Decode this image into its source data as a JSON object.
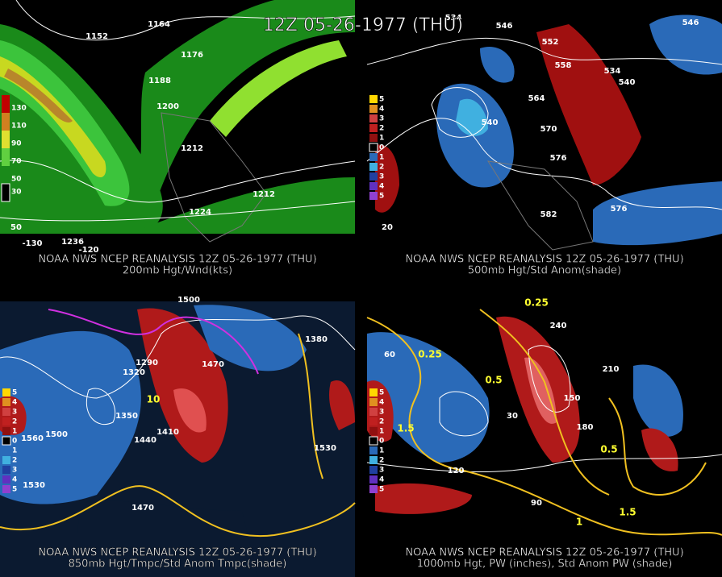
{
  "title": "12Z 05-26-1977 (THU)",
  "panels": [
    {
      "caption": [
        "NOAA NWS NCEP REANALYSIS 12Z 05-26-1977 (THU)",
        "200mb Hgt/Wnd(kts)"
      ],
      "legend": [
        "130",
        "110",
        "90",
        "70",
        "50",
        "30"
      ],
      "labels": [
        "1152",
        "1164",
        "1176",
        "1188",
        "1200",
        "1212",
        "1224",
        "1236",
        "1212",
        "-130",
        "-120",
        "50"
      ]
    },
    {
      "caption": [
        "NOAA NWS NCEP REANALYSIS 12Z 05-26-1977 (THU)",
        "500mb Hgt/Std Anom(shade)"
      ],
      "legend": [
        "5",
        "4",
        "3",
        "2",
        "1",
        "0",
        "1",
        "2",
        "3",
        "4",
        "5"
      ],
      "labels": [
        "534",
        "546",
        "552",
        "558",
        "564",
        "570",
        "576",
        "582",
        "540",
        "546",
        "534",
        "540",
        "576",
        "20"
      ]
    },
    {
      "caption": [
        "NOAA NWS NCEP REANALYSIS 12Z 05-26-1977 (THU)",
        "850mb Hgt/Tmpc/Std Anom Tmpc(shade)"
      ],
      "legend": [
        "5",
        "4",
        "3",
        "2",
        "1",
        "0",
        "1",
        "2",
        "3",
        "4",
        "5"
      ],
      "labels": [
        "1500",
        "1470",
        "1380",
        "1320",
        "1440",
        "1560",
        "1530",
        "1350",
        "1410",
        "1500",
        "1530",
        "1470",
        "10",
        "1290"
      ]
    },
    {
      "caption": [
        "NOAA NWS NCEP REANALYSIS 12Z 05-26-1977 (THU)",
        "1000mb Hgt, PW (inches), Std Anom PW (shade)"
      ],
      "legend": [
        "5",
        "4",
        "3",
        "2",
        "1",
        "0",
        "1",
        "2",
        "3",
        "4",
        "5"
      ],
      "labels": [
        "0.25",
        "0.5",
        "1",
        "1.5",
        "30",
        "60",
        "90",
        "120",
        "150",
        "180",
        "210",
        "240",
        "0.25",
        "1.5",
        "0.5"
      ]
    }
  ]
}
